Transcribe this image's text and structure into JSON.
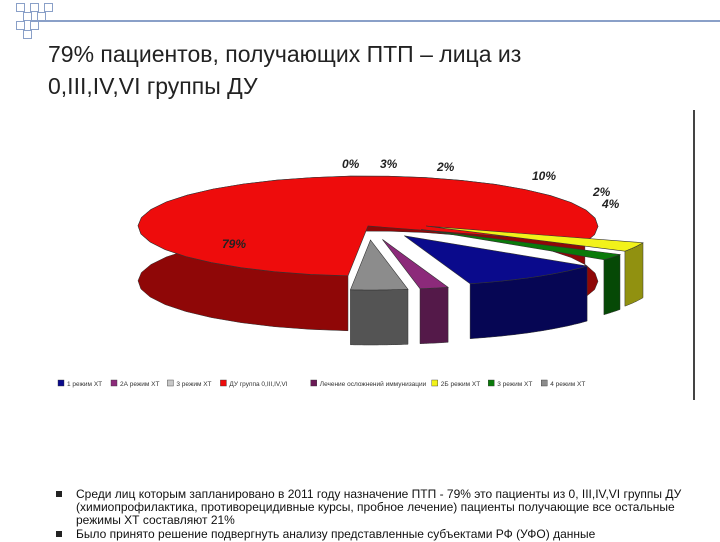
{
  "slide": {
    "title_line1": "79% пациентов, получающих ПТП – лица из",
    "title_line2": "0,III,IV,VI группы ДУ",
    "bullets": [
      "Среди лиц которым запланировано в 2011 году назначение ПТП - 79% это пациенты из 0, III,IV,VI группы ДУ (химиопрофилактика, противорецидивные курсы, пробное лечение) пациенты получающие все остальные режимы ХТ составляют 21%",
      "Было принято решение подвергнуть анализу представленные субъектами РФ (УФО) данные"
    ]
  },
  "chart_data": {
    "type": "pie",
    "title": "",
    "slices": [
      {
        "name": "1 режим ХТ",
        "value": 10,
        "label": "10%",
        "color": "#0a0a8c"
      },
      {
        "name": "2А режим ХТ",
        "value": 2,
        "label": "2%",
        "color": "#8c2a7a"
      },
      {
        "name": "3 режим ХТ",
        "value": 0,
        "label": "",
        "color": "#c8c8c8"
      },
      {
        "name": "ДУ группа 0,III,IV,VI",
        "value": 79,
        "label": "79%",
        "color": "#ee0c0c"
      },
      {
        "name": "Лечение осложнений иммунизации",
        "value": 0,
        "label": "0%",
        "color": "#6a1a55"
      },
      {
        "name": "2Б режим ХТ",
        "value": 3,
        "label": "3%",
        "color": "#f2f21a"
      },
      {
        "name": "3 режим ХТ",
        "value": 2,
        "label": "2%",
        "color": "#0a7a0a"
      },
      {
        "name": "4 режим ХТ",
        "value": 4,
        "label": "4%",
        "color": "#8c8c8c"
      }
    ],
    "legend_position": "bottom",
    "legend": [
      {
        "name": "1 режим ХТ",
        "color": "#0a0a8c"
      },
      {
        "name": "2А режим ХТ",
        "color": "#8c2a7a"
      },
      {
        "name": "3 режим ХТ",
        "color": "#c8c8c8"
      },
      {
        "name": "ДУ группа 0,III,IV,VI",
        "color": "#ee0c0c"
      },
      {
        "name": "Лечение осложнений иммунизации",
        "color": "#6a1a55"
      },
      {
        "name": "2Б режим ХТ",
        "color": "#f2f21a"
      },
      {
        "name": "3 режим ХТ",
        "color": "#0a7a0a"
      },
      {
        "name": "4 режим ХТ",
        "color": "#8c8c8c"
      }
    ]
  }
}
